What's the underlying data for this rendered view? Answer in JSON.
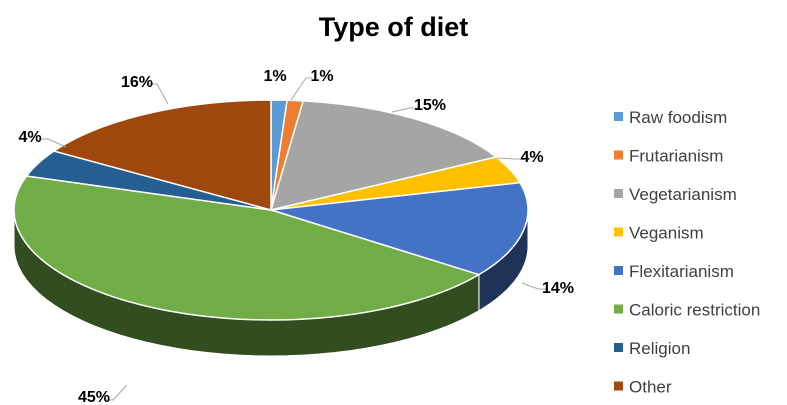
{
  "chart_data": {
    "type": "pie",
    "style": "3d-pie",
    "title": "Type of diet",
    "legend_position": "right",
    "slices": [
      {
        "label": "Raw foodism",
        "value": 1,
        "display": "1%",
        "color": "#5B9BD5"
      },
      {
        "label": "Frutarianism",
        "value": 1,
        "display": "1%",
        "color": "#ED7D31"
      },
      {
        "label": "Vegetarianism",
        "value": 15,
        "display": "15%",
        "color": "#A5A5A5"
      },
      {
        "label": "Veganism",
        "value": 4,
        "display": "4%",
        "color": "#FFC000"
      },
      {
        "label": "Flexitarianism",
        "value": 14,
        "display": "14%",
        "color": "#4472C4"
      },
      {
        "label": "Caloric restriction",
        "value": 45,
        "display": "45%",
        "color": "#70AD47"
      },
      {
        "label": "Religion",
        "value": 4,
        "display": "4%",
        "color": "#255E91"
      },
      {
        "label": "Other",
        "value": 16,
        "display": "16%",
        "color": "#9E480E"
      }
    ]
  }
}
